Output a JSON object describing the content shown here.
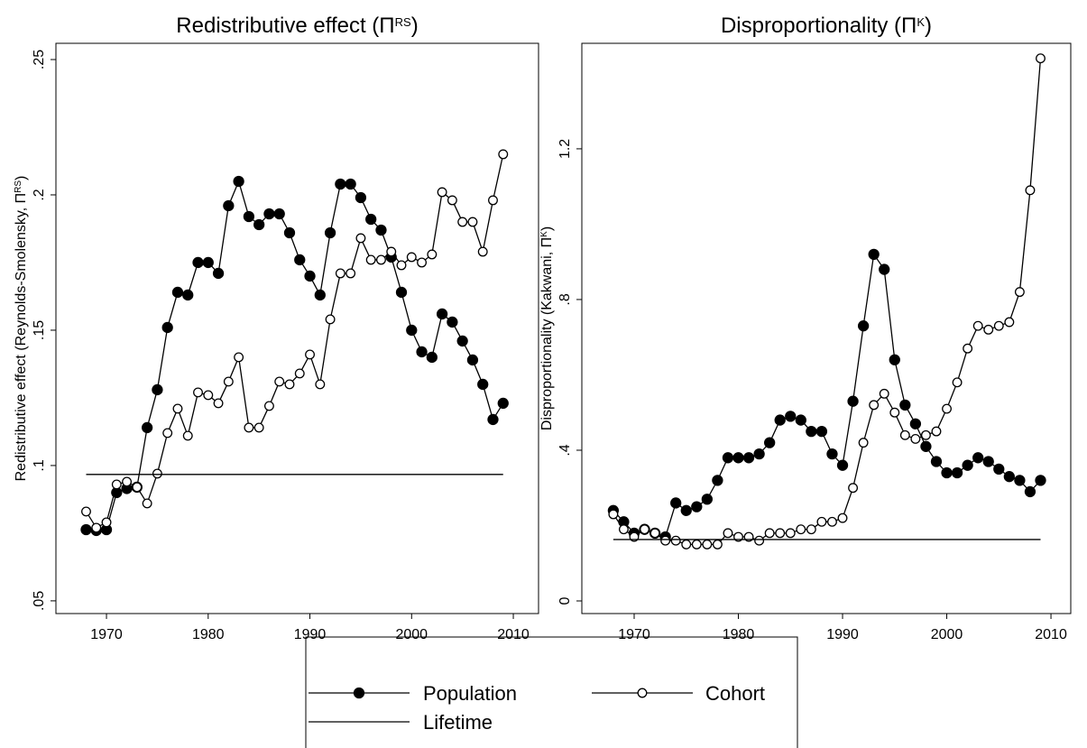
{
  "chart_data": [
    {
      "type": "line",
      "title": [
        "Redistributive effect (Π",
        "RS",
        ")"
      ],
      "ylabel": [
        "Redistributive effect (Reynolds-Smolensky, Π",
        "RS",
        ")"
      ],
      "x": [
        1968,
        1969,
        1970,
        1971,
        1972,
        1973,
        1974,
        1975,
        1976,
        1977,
        1978,
        1979,
        1980,
        1981,
        1982,
        1983,
        1984,
        1985,
        1986,
        1987,
        1988,
        1989,
        1990,
        1991,
        1992,
        1993,
        1994,
        1995,
        1996,
        1997,
        1998,
        1999,
        2000,
        2001,
        2002,
        2003,
        2004,
        2005,
        2006,
        2007,
        2008,
        2009
      ],
      "series": [
        {
          "name": "Population",
          "color": "#000000",
          "marker": "filled",
          "values": [
            0.0763,
            0.076,
            0.0763,
            0.09,
            0.0915,
            0.092,
            0.114,
            0.128,
            0.151,
            0.164,
            0.163,
            0.175,
            0.175,
            0.171,
            0.196,
            0.205,
            0.192,
            0.189,
            0.193,
            0.193,
            0.186,
            0.176,
            0.17,
            0.163,
            0.186,
            0.204,
            0.204,
            0.199,
            0.191,
            0.187,
            0.177,
            0.164,
            0.15,
            0.142,
            0.14,
            0.156,
            0.153,
            0.146,
            0.139,
            0.13,
            0.117,
            0.123
          ]
        },
        {
          "name": "Cohort",
          "color": "#000000",
          "marker": "hollow",
          "values": [
            0.083,
            0.077,
            0.079,
            0.093,
            0.094,
            0.092,
            0.086,
            0.097,
            0.112,
            0.121,
            0.111,
            0.127,
            0.126,
            0.123,
            0.131,
            0.14,
            0.114,
            0.114,
            0.122,
            0.131,
            0.13,
            0.134,
            0.141,
            0.13,
            0.154,
            0.171,
            0.171,
            0.184,
            0.176,
            0.176,
            0.179,
            0.174,
            0.177,
            0.175,
            0.178,
            0.201,
            0.198,
            0.19,
            0.19,
            0.179,
            0.198,
            0.215
          ]
        },
        {
          "name": "Lifetime",
          "color": "#000000",
          "marker": "none",
          "values": [
            0.0967,
            0.0967,
            0.0967,
            0.0967,
            0.0967,
            0.0967,
            0.0967,
            0.0967,
            0.0967,
            0.0967,
            0.0967,
            0.0967,
            0.0967,
            0.0967,
            0.0967,
            0.0967,
            0.0967,
            0.0967,
            0.0967,
            0.0967,
            0.0967,
            0.0967,
            0.0967,
            0.0967,
            0.0967,
            0.0967,
            0.0967,
            0.0967,
            0.0967,
            0.0967,
            0.0967,
            0.0967,
            0.0967,
            0.0967,
            0.0967,
            0.0967,
            0.0967,
            0.0967,
            0.0967,
            0.0967,
            0.0967,
            0.0967
          ]
        }
      ],
      "xlim": [
        1965.03,
        2012.48
      ],
      "xticks": [
        1970,
        1980,
        1990,
        2000,
        2010
      ],
      "ylim": [
        0.0453,
        0.256
      ],
      "yticks": [
        {
          "value": 0.05,
          "label": ".05"
        },
        {
          "value": 0.1,
          "label": ".1"
        },
        {
          "value": 0.15,
          "label": ".15"
        },
        {
          "value": 0.2,
          "label": ".2"
        },
        {
          "value": 0.25,
          "label": ".25"
        }
      ]
    },
    {
      "type": "line",
      "title": [
        "Disproportionality (Π",
        "K",
        ")"
      ],
      "ylabel": [
        "Disproportionality (Kakwani, Π",
        "K",
        ")"
      ],
      "x": [
        1968,
        1969,
        1970,
        1971,
        1972,
        1973,
        1974,
        1975,
        1976,
        1977,
        1978,
        1979,
        1980,
        1981,
        1982,
        1983,
        1984,
        1985,
        1986,
        1987,
        1988,
        1989,
        1990,
        1991,
        1992,
        1993,
        1994,
        1995,
        1996,
        1997,
        1998,
        1999,
        2000,
        2001,
        2002,
        2003,
        2004,
        2005,
        2006,
        2007,
        2008,
        2009
      ],
      "series": [
        {
          "name": "Population",
          "color": "#000000",
          "marker": "filled",
          "values": [
            0.24,
            0.21,
            0.18,
            0.19,
            0.18,
            0.17,
            0.26,
            0.24,
            0.25,
            0.27,
            0.32,
            0.38,
            0.38,
            0.38,
            0.39,
            0.42,
            0.48,
            0.49,
            0.48,
            0.45,
            0.45,
            0.39,
            0.36,
            0.53,
            0.73,
            0.92,
            0.88,
            0.64,
            0.52,
            0.47,
            0.41,
            0.37,
            0.34,
            0.34,
            0.36,
            0.38,
            0.37,
            0.35,
            0.33,
            0.32,
            0.29,
            0.32
          ]
        },
        {
          "name": "Cohort",
          "color": "#000000",
          "marker": "hollow",
          "values": [
            0.23,
            0.19,
            0.17,
            0.19,
            0.18,
            0.16,
            0.16,
            0.15,
            0.15,
            0.15,
            0.15,
            0.18,
            0.17,
            0.17,
            0.16,
            0.18,
            0.18,
            0.18,
            0.19,
            0.19,
            0.21,
            0.21,
            0.22,
            0.3,
            0.42,
            0.52,
            0.55,
            0.5,
            0.44,
            0.43,
            0.44,
            0.45,
            0.51,
            0.58,
            0.67,
            0.73,
            0.72,
            0.73,
            0.74,
            0.82,
            1.09,
            1.44
          ]
        },
        {
          "name": "Lifetime",
          "color": "#000000",
          "marker": "none",
          "values": [
            0.163,
            0.163,
            0.163,
            0.163,
            0.163,
            0.163,
            0.163,
            0.163,
            0.163,
            0.163,
            0.163,
            0.163,
            0.163,
            0.163,
            0.163,
            0.163,
            0.163,
            0.163,
            0.163,
            0.163,
            0.163,
            0.163,
            0.163,
            0.163,
            0.163,
            0.163,
            0.163,
            0.163,
            0.163,
            0.163,
            0.163,
            0.163,
            0.163,
            0.163,
            0.163,
            0.163,
            0.163,
            0.163,
            0.163,
            0.163,
            0.163,
            0.163
          ]
        }
      ],
      "xlim": [
        1964.98,
        2011.9
      ],
      "xticks": [
        1970,
        1980,
        1990,
        2000,
        2010
      ],
      "ylim": [
        -0.0335,
        1.48
      ],
      "yticks": [
        0,
        {
          "value": 0.4,
          "label": ".4"
        },
        {
          "value": 0.8,
          "label": ".8"
        },
        1.2
      ]
    }
  ]
}
